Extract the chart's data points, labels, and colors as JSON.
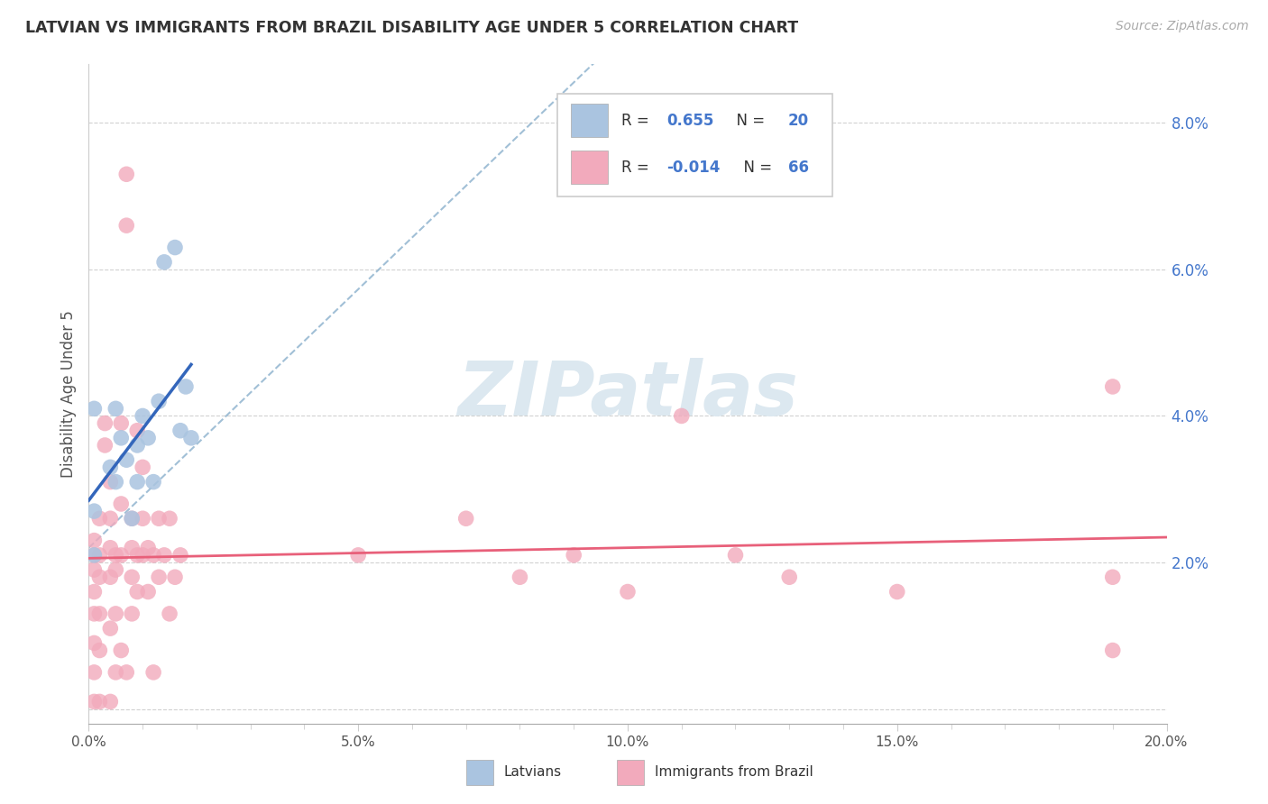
{
  "title": "LATVIAN VS IMMIGRANTS FROM BRAZIL DISABILITY AGE UNDER 5 CORRELATION CHART",
  "source": "Source: ZipAtlas.com",
  "ylabel": "Disability Age Under 5",
  "xlim": [
    0.0,
    0.2
  ],
  "ylim": [
    -0.002,
    0.088
  ],
  "xticks": [
    0.0,
    0.05,
    0.1,
    0.15,
    0.2
  ],
  "xtick_labels": [
    "0.0%",
    "5.0%",
    "10.0%",
    "15.0%",
    "20.0%"
  ],
  "yticks": [
    0.0,
    0.02,
    0.04,
    0.06,
    0.08
  ],
  "ytick_labels": [
    "",
    "2.0%",
    "4.0%",
    "6.0%",
    "8.0%"
  ],
  "latvian_R": 0.655,
  "latvian_N": 20,
  "brazil_R": -0.014,
  "brazil_N": 66,
  "blue_color": "#aac4e0",
  "blue_line_color": "#3366bb",
  "pink_color": "#f2aabc",
  "pink_line_color": "#e8607a",
  "dashed_line_color": "#8ab0cc",
  "axis_label_color": "#4477cc",
  "watermark_color": "#dce8f0",
  "watermark": "ZIPatlas",
  "legend_entries": [
    "Latvians",
    "Immigrants from Brazil"
  ],
  "latvian_points": [
    [
      0.001,
      0.021
    ],
    [
      0.001,
      0.027
    ],
    [
      0.001,
      0.041
    ],
    [
      0.004,
      0.033
    ],
    [
      0.005,
      0.031
    ],
    [
      0.005,
      0.041
    ],
    [
      0.006,
      0.037
    ],
    [
      0.007,
      0.034
    ],
    [
      0.008,
      0.026
    ],
    [
      0.009,
      0.031
    ],
    [
      0.009,
      0.036
    ],
    [
      0.01,
      0.04
    ],
    [
      0.011,
      0.037
    ],
    [
      0.012,
      0.031
    ],
    [
      0.013,
      0.042
    ],
    [
      0.014,
      0.061
    ],
    [
      0.016,
      0.063
    ],
    [
      0.017,
      0.038
    ],
    [
      0.018,
      0.044
    ],
    [
      0.019,
      0.037
    ]
  ],
  "brazil_points": [
    [
      0.001,
      0.001
    ],
    [
      0.001,
      0.005
    ],
    [
      0.001,
      0.009
    ],
    [
      0.001,
      0.013
    ],
    [
      0.001,
      0.016
    ],
    [
      0.001,
      0.019
    ],
    [
      0.001,
      0.021
    ],
    [
      0.001,
      0.023
    ],
    [
      0.002,
      0.001
    ],
    [
      0.002,
      0.008
    ],
    [
      0.002,
      0.013
    ],
    [
      0.002,
      0.018
    ],
    [
      0.002,
      0.021
    ],
    [
      0.002,
      0.026
    ],
    [
      0.003,
      0.036
    ],
    [
      0.003,
      0.039
    ],
    [
      0.004,
      0.001
    ],
    [
      0.004,
      0.011
    ],
    [
      0.004,
      0.018
    ],
    [
      0.004,
      0.022
    ],
    [
      0.004,
      0.026
    ],
    [
      0.004,
      0.031
    ],
    [
      0.005,
      0.005
    ],
    [
      0.005,
      0.013
    ],
    [
      0.005,
      0.019
    ],
    [
      0.005,
      0.021
    ],
    [
      0.006,
      0.008
    ],
    [
      0.006,
      0.021
    ],
    [
      0.006,
      0.028
    ],
    [
      0.006,
      0.039
    ],
    [
      0.007,
      0.066
    ],
    [
      0.007,
      0.073
    ],
    [
      0.007,
      0.005
    ],
    [
      0.008,
      0.013
    ],
    [
      0.008,
      0.018
    ],
    [
      0.008,
      0.022
    ],
    [
      0.008,
      0.026
    ],
    [
      0.009,
      0.016
    ],
    [
      0.009,
      0.021
    ],
    [
      0.009,
      0.038
    ],
    [
      0.01,
      0.021
    ],
    [
      0.01,
      0.026
    ],
    [
      0.01,
      0.033
    ],
    [
      0.011,
      0.016
    ],
    [
      0.011,
      0.022
    ],
    [
      0.012,
      0.005
    ],
    [
      0.012,
      0.021
    ],
    [
      0.013,
      0.018
    ],
    [
      0.013,
      0.026
    ],
    [
      0.014,
      0.021
    ],
    [
      0.015,
      0.026
    ],
    [
      0.015,
      0.013
    ],
    [
      0.016,
      0.018
    ],
    [
      0.017,
      0.021
    ],
    [
      0.05,
      0.021
    ],
    [
      0.07,
      0.026
    ],
    [
      0.08,
      0.018
    ],
    [
      0.09,
      0.021
    ],
    [
      0.1,
      0.016
    ],
    [
      0.11,
      0.04
    ],
    [
      0.12,
      0.021
    ],
    [
      0.13,
      0.018
    ],
    [
      0.15,
      0.016
    ],
    [
      0.19,
      0.008
    ],
    [
      0.19,
      0.044
    ],
    [
      0.19,
      0.018
    ]
  ]
}
